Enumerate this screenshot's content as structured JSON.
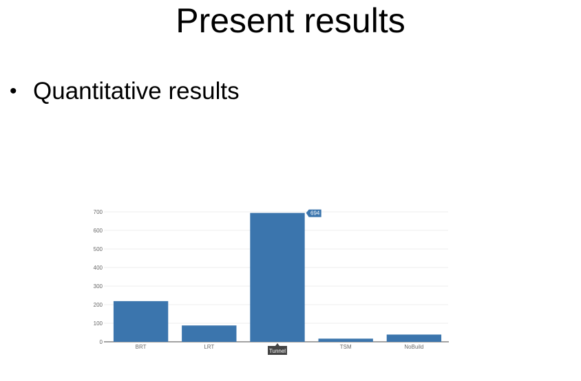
{
  "slide": {
    "title": "Present results",
    "bullet": "Quantitative results"
  },
  "chart_data": {
    "type": "bar",
    "categories": [
      "BRT",
      "LRT",
      "Tunnel",
      "TSM",
      "NoBuild"
    ],
    "values": [
      219,
      88,
      694,
      17,
      39
    ],
    "title": "",
    "xlabel": "",
    "ylabel": "",
    "ylim": [
      0,
      700
    ],
    "yticks": [
      0,
      100,
      200,
      300,
      400,
      500,
      600,
      700
    ],
    "grid": true,
    "legend": "none",
    "bar_color": "#3b75ad",
    "highlighted_category": "Tunnel",
    "highlighted_value_label": "694"
  }
}
